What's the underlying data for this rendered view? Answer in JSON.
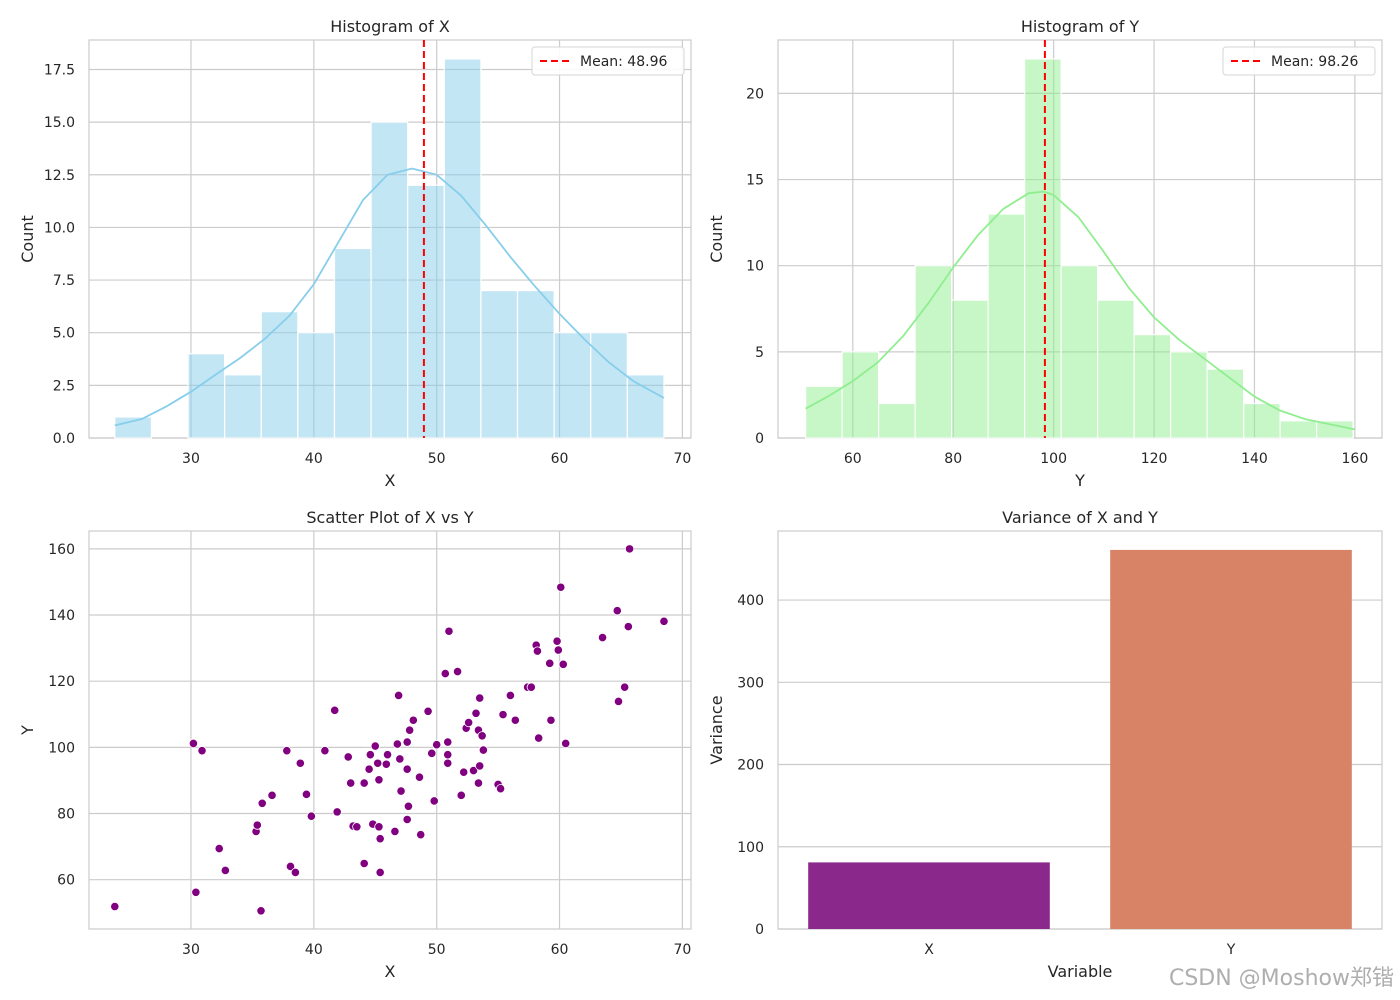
{
  "watermark": "CSDN @Moshow郑锴",
  "chart_data": [
    {
      "type": "bar",
      "subtype": "histogram",
      "title": "Histogram of X",
      "xlabel": "X",
      "ylabel": "Count",
      "xlim": [
        21.7,
        70.7
      ],
      "ylim": [
        0,
        18.9
      ],
      "xticks": [
        30,
        40,
        50,
        60,
        70
      ],
      "yticks": [
        0.0,
        2.5,
        5.0,
        7.5,
        10.0,
        12.5,
        15.0,
        17.5
      ],
      "bin_edges": [
        23.8,
        26.78,
        29.76,
        32.74,
        35.72,
        38.7,
        41.68,
        44.66,
        47.64,
        50.62,
        53.6,
        56.58,
        59.56,
        62.54,
        65.52,
        68.5
      ],
      "counts": [
        1,
        0,
        4,
        3,
        6,
        5,
        9,
        15,
        12,
        18,
        7,
        7,
        5,
        5,
        3
      ],
      "kde": {
        "x": [
          23.8,
          26,
          28,
          30,
          32,
          34,
          36,
          38,
          40,
          42,
          44,
          46,
          48,
          50,
          52,
          54,
          56,
          58,
          60,
          62,
          64,
          66,
          68.5
        ],
        "y": [
          0.6,
          0.9,
          1.5,
          2.2,
          3.0,
          3.8,
          4.7,
          5.8,
          7.3,
          9.3,
          11.3,
          12.5,
          12.8,
          12.5,
          11.5,
          10.1,
          8.6,
          7.2,
          5.9,
          4.7,
          3.6,
          2.7,
          1.9
        ]
      },
      "mean": 48.96,
      "mean_label": "Mean: 48.96",
      "legend": "upper right",
      "grid": true,
      "colors": {
        "bar": "#87ceeb",
        "line": "#87ceeb",
        "mean": "#ff0000"
      }
    },
    {
      "type": "bar",
      "subtype": "histogram",
      "title": "Histogram of Y",
      "xlabel": "Y",
      "ylabel": "Count",
      "xlim": [
        45.1,
        165.4
      ],
      "ylim": [
        0,
        23.1
      ],
      "xticks": [
        60,
        80,
        100,
        120,
        140,
        160
      ],
      "yticks": [
        0,
        5,
        10,
        15,
        20
      ],
      "bin_edges": [
        50.6,
        57.87,
        65.14,
        72.41,
        79.68,
        86.95,
        94.22,
        101.49,
        108.76,
        116.03,
        123.3,
        130.57,
        137.84,
        145.11,
        152.38,
        159.65
      ],
      "counts": [
        3,
        5,
        2,
        10,
        8,
        13,
        22,
        10,
        8,
        6,
        5,
        4,
        2,
        1,
        1
      ],
      "kde": {
        "x": [
          50.6,
          55,
          60,
          65,
          70,
          75,
          80,
          85,
          90,
          95,
          98,
          100,
          105,
          110,
          115,
          120,
          125,
          130,
          135,
          140,
          145,
          150,
          155,
          160
        ],
        "y": [
          1.7,
          2.4,
          3.3,
          4.4,
          5.9,
          7.8,
          9.9,
          11.8,
          13.3,
          14.2,
          14.3,
          14.1,
          12.8,
          10.8,
          8.7,
          7.0,
          5.7,
          4.6,
          3.5,
          2.4,
          1.6,
          1.1,
          0.8,
          0.5
        ]
      },
      "mean": 98.26,
      "mean_label": "Mean: 98.26",
      "legend": "upper right",
      "grid": true,
      "colors": {
        "bar": "#90ee90",
        "line": "#90ee90",
        "mean": "#ff0000"
      }
    },
    {
      "type": "scatter",
      "title": "Scatter Plot of X vs Y",
      "xlabel": "X",
      "ylabel": "Y",
      "xlim": [
        21.7,
        70.7
      ],
      "ylim": [
        45.1,
        165.4
      ],
      "xticks": [
        30,
        40,
        50,
        60,
        70
      ],
      "yticks": [
        60,
        80,
        100,
        120,
        140,
        160
      ],
      "grid": true,
      "colors": {
        "point": "#800080"
      },
      "points": [
        [
          23.8,
          51.9
        ],
        [
          30.2,
          101.2
        ],
        [
          30.9,
          99.0
        ],
        [
          30.4,
          56.2
        ],
        [
          32.3,
          69.4
        ],
        [
          32.8,
          62.8
        ],
        [
          35.3,
          74.6
        ],
        [
          35.4,
          76.5
        ],
        [
          35.8,
          83.1
        ],
        [
          35.7,
          50.6
        ],
        [
          36.6,
          85.5
        ],
        [
          37.8,
          99.0
        ],
        [
          38.1,
          64.0
        ],
        [
          38.5,
          62.2
        ],
        [
          38.9,
          95.2
        ],
        [
          39.4,
          85.8
        ],
        [
          39.8,
          79.2
        ],
        [
          40.9,
          99.0
        ],
        [
          41.7,
          111.2
        ],
        [
          41.9,
          80.5
        ],
        [
          42.8,
          97.1
        ],
        [
          43.0,
          89.2
        ],
        [
          43.2,
          76.2
        ],
        [
          43.5,
          76.0
        ],
        [
          44.1,
          64.9
        ],
        [
          44.1,
          89.2
        ],
        [
          44.5,
          93.4
        ],
        [
          44.6,
          97.8
        ],
        [
          44.8,
          76.8
        ],
        [
          45.0,
          100.4
        ],
        [
          45.2,
          95.2
        ],
        [
          45.3,
          76.0
        ],
        [
          45.3,
          90.2
        ],
        [
          45.4,
          72.4
        ],
        [
          45.4,
          62.2
        ],
        [
          45.9,
          94.9
        ],
        [
          46.0,
          97.8
        ],
        [
          46.6,
          74.6
        ],
        [
          46.8,
          101.0
        ],
        [
          46.9,
          115.7
        ],
        [
          47.0,
          96.5
        ],
        [
          47.1,
          86.8
        ],
        [
          47.6,
          93.4
        ],
        [
          47.6,
          101.6
        ],
        [
          47.6,
          78.2
        ],
        [
          47.7,
          82.2
        ],
        [
          47.8,
          105.2
        ],
        [
          48.1,
          108.2
        ],
        [
          48.6,
          91.0
        ],
        [
          48.7,
          73.6
        ],
        [
          49.3,
          110.9
        ],
        [
          49.6,
          98.2
        ],
        [
          49.8,
          83.8
        ],
        [
          50.0,
          100.8
        ],
        [
          50.7,
          122.3
        ],
        [
          50.9,
          101.6
        ],
        [
          50.9,
          97.8
        ],
        [
          50.9,
          95.2
        ],
        [
          51.0,
          135.1
        ],
        [
          51.7,
          122.9
        ],
        [
          52.0,
          85.5
        ],
        [
          52.2,
          92.5
        ],
        [
          52.4,
          105.8
        ],
        [
          52.6,
          107.5
        ],
        [
          53.0,
          93.0
        ],
        [
          53.2,
          110.3
        ],
        [
          53.4,
          89.2
        ],
        [
          53.4,
          105.2
        ],
        [
          53.5,
          114.9
        ],
        [
          53.5,
          94.4
        ],
        [
          53.7,
          103.5
        ],
        [
          53.8,
          99.2
        ],
        [
          55.0,
          88.8
        ],
        [
          55.2,
          87.5
        ],
        [
          55.4,
          109.9
        ],
        [
          56.0,
          115.7
        ],
        [
          56.4,
          108.2
        ],
        [
          57.4,
          118.2
        ],
        [
          57.7,
          118.2
        ],
        [
          58.1,
          130.9
        ],
        [
          58.2,
          129.1
        ],
        [
          58.3,
          102.8
        ],
        [
          59.2,
          125.4
        ],
        [
          59.3,
          108.2
        ],
        [
          59.8,
          132.1
        ],
        [
          59.9,
          129.4
        ],
        [
          60.1,
          148.4
        ],
        [
          60.3,
          125.1
        ],
        [
          60.5,
          101.2
        ],
        [
          63.5,
          133.2
        ],
        [
          64.7,
          141.3
        ],
        [
          64.8,
          113.9
        ],
        [
          65.3,
          118.2
        ],
        [
          65.6,
          136.5
        ],
        [
          65.7,
          160.0
        ],
        [
          68.5,
          138.1
        ]
      ]
    },
    {
      "type": "bar",
      "title": "Variance of X and Y",
      "xlabel": "Variable",
      "ylabel": "Variance",
      "categories": [
        "X",
        "Y"
      ],
      "values": [
        81,
        461
      ],
      "ylim": [
        0,
        484
      ],
      "yticks": [
        0,
        100,
        200,
        300,
        400
      ],
      "grid": true,
      "colors": {
        "bars": [
          "#8b288b",
          "#d88266"
        ]
      }
    }
  ]
}
